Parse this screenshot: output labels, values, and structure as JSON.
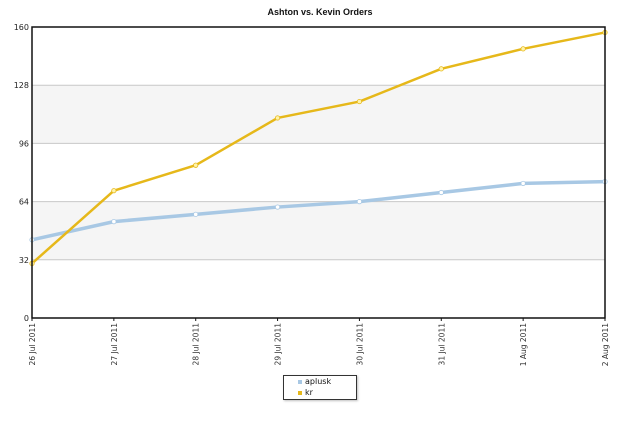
{
  "chart_data": {
    "type": "line",
    "title": "Ashton vs. Kevin Orders",
    "xlabel": "",
    "ylabel": "",
    "categories": [
      "26 Jul 2011",
      "27 Jul 2011",
      "28 Jul 2011",
      "29 Jul 2011",
      "30 Jul 2011",
      "31 Jul 2011",
      "1 Aug 2011",
      "2 Aug 2011"
    ],
    "series": [
      {
        "name": "aplusk",
        "color": "#a8c8e4",
        "values": [
          43,
          53,
          57,
          61,
          64,
          69,
          74,
          75
        ]
      },
      {
        "name": "kr",
        "color": "#e6b81a",
        "values": [
          30,
          70,
          84,
          110,
          119,
          137,
          148,
          157
        ]
      }
    ],
    "ylim": [
      0,
      160
    ],
    "yticks": [
      0,
      32,
      64,
      96,
      128,
      160
    ],
    "grid": true,
    "alternating_bands": true,
    "legend_position": "bottom-center"
  },
  "title": "Ashton vs. Kevin Orders",
  "legend": {
    "items": [
      {
        "label": "aplusk",
        "color": "#a8c8e4"
      },
      {
        "label": "kr",
        "color": "#e6b81a"
      }
    ]
  }
}
